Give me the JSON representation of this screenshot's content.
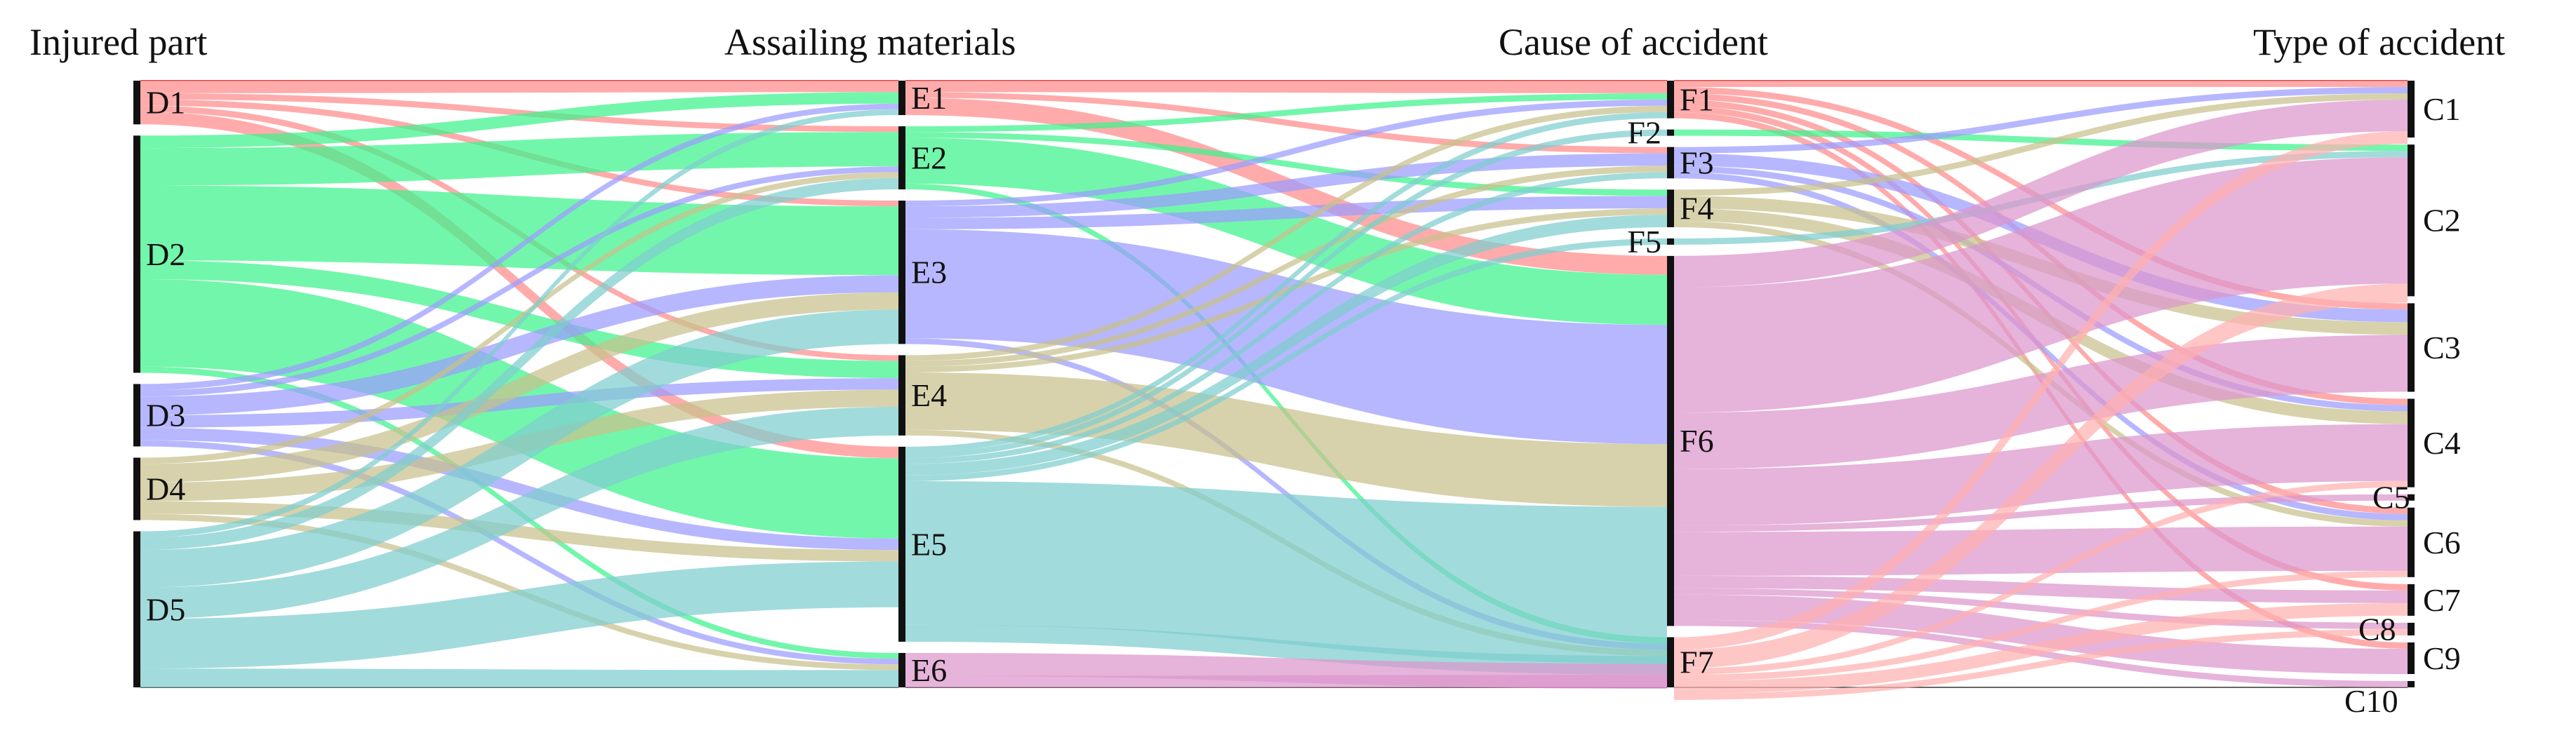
{
  "chart_data": {
    "type": "sankey",
    "columns": [
      {
        "title": "Injured part",
        "nodes": [
          {
            "id": "D1",
            "value": 7
          },
          {
            "id": "D2",
            "value": 38
          },
          {
            "id": "D3",
            "value": 10
          },
          {
            "id": "D4",
            "value": 10
          },
          {
            "id": "D5",
            "value": 25
          }
        ]
      },
      {
        "title": "Assailing materials",
        "nodes": [
          {
            "id": "E1",
            "value": 6
          },
          {
            "id": "E2",
            "value": 11
          },
          {
            "id": "E3",
            "value": 25
          },
          {
            "id": "E4",
            "value": 14
          },
          {
            "id": "E5",
            "value": 34
          },
          {
            "id": "E6",
            "value": 6
          }
        ]
      },
      {
        "title": "Cause of accident",
        "nodes": [
          {
            "id": "F1",
            "value": 6
          },
          {
            "id": "F2",
            "value": 1
          },
          {
            "id": "F3",
            "value": 5
          },
          {
            "id": "F4",
            "value": 6
          },
          {
            "id": "F5",
            "value": 1
          },
          {
            "id": "F6",
            "value": 59
          },
          {
            "id": "F7",
            "value": 8
          }
        ]
      },
      {
        "title": "Type of accident",
        "nodes": [
          {
            "id": "C1",
            "value": 9
          },
          {
            "id": "C2",
            "value": 24
          },
          {
            "id": "C3",
            "value": 14
          },
          {
            "id": "C4",
            "value": 14
          },
          {
            "id": "C5",
            "value": 1
          },
          {
            "id": "C6",
            "value": 11
          },
          {
            "id": "C7",
            "value": 5
          },
          {
            "id": "C8",
            "value": 2
          },
          {
            "id": "C9",
            "value": 5
          },
          {
            "id": "C10",
            "value": 1
          }
        ]
      }
    ],
    "node_colors": {
      "D1": "#ff8a8a",
      "D2": "#3cf28a",
      "D3": "#9b9bff",
      "D4": "#c7c08c",
      "D5": "#7ecdcf",
      "E1": "#ff8a8a",
      "E2": "#3cf28a",
      "E3": "#9b9bff",
      "E4": "#c7c08c",
      "E5": "#7ecdcf",
      "E6": "#dc96cc",
      "F1": "#ff8a8a",
      "F2": "#3cf28a",
      "F3": "#9b9bff",
      "F4": "#c7c08c",
      "F5": "#7ecdcf",
      "F6": "#dc96cc",
      "F7": "#ffb0b0"
    },
    "links": [
      [
        "D1",
        "E1",
        2
      ],
      [
        "D1",
        "E2",
        1
      ],
      [
        "D1",
        "E3",
        1
      ],
      [
        "D1",
        "E4",
        1
      ],
      [
        "D1",
        "E5",
        2
      ],
      [
        "D2",
        "E1",
        2
      ],
      [
        "D2",
        "E2",
        6
      ],
      [
        "D2",
        "E3",
        12
      ],
      [
        "D2",
        "E4",
        3
      ],
      [
        "D2",
        "E5",
        14
      ],
      [
        "D2",
        "E6",
        1
      ],
      [
        "D3",
        "E1",
        1
      ],
      [
        "D3",
        "E2",
        1
      ],
      [
        "D3",
        "E3",
        3
      ],
      [
        "D3",
        "E4",
        2
      ],
      [
        "D3",
        "E5",
        2
      ],
      [
        "D3",
        "E6",
        1
      ],
      [
        "D4",
        "E2",
        1
      ],
      [
        "D4",
        "E3",
        3
      ],
      [
        "D4",
        "E4",
        3
      ],
      [
        "D4",
        "E5",
        2
      ],
      [
        "D4",
        "E6",
        1
      ],
      [
        "D5",
        "E1",
        1
      ],
      [
        "D5",
        "E2",
        2
      ],
      [
        "D5",
        "E3",
        6
      ],
      [
        "D5",
        "E4",
        5
      ],
      [
        "D5",
        "E5",
        8
      ],
      [
        "D5",
        "E6",
        3
      ],
      [
        "E1",
        "F1",
        2
      ],
      [
        "E1",
        "F3",
        1
      ],
      [
        "E1",
        "F6",
        3
      ],
      [
        "E2",
        "F1",
        1
      ],
      [
        "E2",
        "F4",
        1
      ],
      [
        "E2",
        "F6",
        8
      ],
      [
        "E2",
        "F7",
        1
      ],
      [
        "E3",
        "F1",
        1
      ],
      [
        "E3",
        "F3",
        2
      ],
      [
        "E3",
        "F4",
        2
      ],
      [
        "E3",
        "F6",
        19
      ],
      [
        "E3",
        "F7",
        1
      ],
      [
        "E4",
        "F1",
        1
      ],
      [
        "E4",
        "F3",
        1
      ],
      [
        "E4",
        "F4",
        1
      ],
      [
        "E4",
        "F6",
        10
      ],
      [
        "E4",
        "F7",
        1
      ],
      [
        "E5",
        "F1",
        1
      ],
      [
        "E5",
        "F2",
        1
      ],
      [
        "E5",
        "F3",
        1
      ],
      [
        "E5",
        "F4",
        2
      ],
      [
        "E5",
        "F5",
        1
      ],
      [
        "E5",
        "F6",
        25
      ],
      [
        "E5",
        "F7",
        3
      ],
      [
        "E6",
        "F6",
        4
      ],
      [
        "E6",
        "F7",
        2
      ],
      [
        "F1",
        "C1",
        1
      ],
      [
        "F1",
        "C3",
        1
      ],
      [
        "F1",
        "C4",
        1
      ],
      [
        "F1",
        "C6",
        1
      ],
      [
        "F1",
        "C7",
        1
      ],
      [
        "F1",
        "C9",
        1
      ],
      [
        "F2",
        "C2",
        1
      ],
      [
        "F3",
        "C1",
        1
      ],
      [
        "F3",
        "C3",
        2
      ],
      [
        "F3",
        "C4",
        1
      ],
      [
        "F3",
        "C6",
        1
      ],
      [
        "F4",
        "C1",
        1
      ],
      [
        "F4",
        "C3",
        2
      ],
      [
        "F4",
        "C4",
        2
      ],
      [
        "F4",
        "C6",
        1
      ],
      [
        "F5",
        "C2",
        1
      ],
      [
        "F6",
        "C1",
        5
      ],
      [
        "F6",
        "C2",
        20
      ],
      [
        "F6",
        "C3",
        9
      ],
      [
        "F6",
        "C4",
        9
      ],
      [
        "F6",
        "C5",
        1
      ],
      [
        "F6",
        "C6",
        7
      ],
      [
        "F6",
        "C7",
        2
      ],
      [
        "F6",
        "C8",
        1
      ],
      [
        "F6",
        "C9",
        4
      ],
      [
        "F6",
        "C10",
        1
      ],
      [
        "F7",
        "C1",
        2
      ],
      [
        "F7",
        "C2",
        3
      ],
      [
        "F7",
        "C4",
        1
      ],
      [
        "F7",
        "C6",
        1
      ],
      [
        "F7",
        "C7",
        2
      ],
      [
        "F7",
        "C8",
        1
      ]
    ]
  }
}
